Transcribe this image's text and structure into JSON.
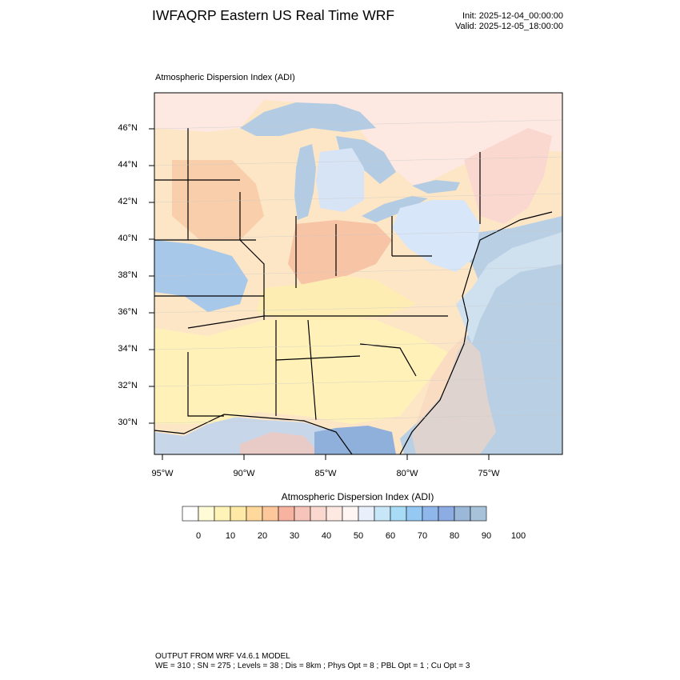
{
  "header": {
    "title": "IWFAQRP Eastern US Real Time WRF",
    "init": "Init: 2025-12-04_00:00:00",
    "valid": "Valid: 2025-12-05_18:00:00"
  },
  "map": {
    "field_label": "Atmospheric Dispersion Index   (ADI)",
    "lat_labels": [
      "46°N",
      "44°N",
      "42°N",
      "40°N",
      "38°N",
      "36°N",
      "34°N",
      "32°N",
      "30°N"
    ],
    "lon_labels": [
      "95°W",
      "90°W",
      "85°W",
      "80°W",
      "75°W"
    ],
    "extent": {
      "lon_min": -95.5,
      "lon_max": -70.8,
      "lat_min": 28.4,
      "lat_max": 47.9
    }
  },
  "legend": {
    "title": "Atmospheric Dispersion Index  (ADI)",
    "labels": [
      "0",
      "10",
      "20",
      "30",
      "40",
      "50",
      "60",
      "70",
      "80",
      "90",
      "100"
    ],
    "colors": [
      "#ffffff",
      "#fffbd6",
      "#fff3b8",
      "#ffe9a6",
      "#ffd89b",
      "#fcc79a",
      "#f7b2a0",
      "#f6c4b8",
      "#fbd8cf",
      "#fde8e2",
      "#fff5f3",
      "#e9f0fb",
      "#c7e6f8",
      "#a8dcf6",
      "#95c9f3",
      "#8fb7ec",
      "#8eace4",
      "#9bb8d8",
      "#a7c2d9"
    ]
  },
  "footer": {
    "line1": "OUTPUT FROM WRF V4.6.1 MODEL",
    "line2": "WE = 310 ; SN = 275 ; Levels = 38 ; Dis = 8km ; Phys Opt = 8 ; PBL Opt = 1 ; Cu Opt = 3"
  }
}
